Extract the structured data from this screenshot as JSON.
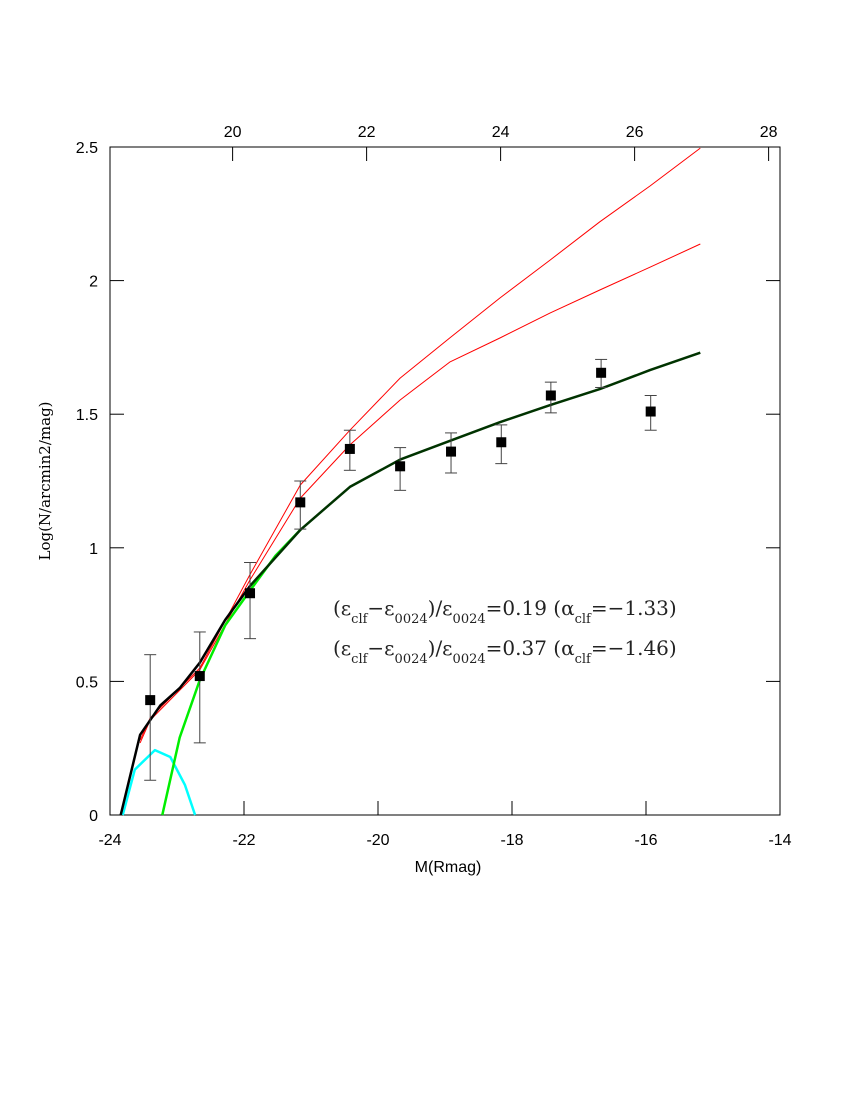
{
  "chart_data": {
    "type": "scatter",
    "xlabel": "M(Rmag)",
    "ylabel": "Log(N/arcmin2/mag)",
    "xlim": [
      -24,
      -14
    ],
    "xticks": [
      -24,
      -22,
      -20,
      -18,
      -16,
      -14
    ],
    "x2lim": [
      18.17,
      28.17
    ],
    "x2ticks": [
      20,
      22,
      24,
      26,
      28
    ],
    "ylim": [
      0,
      2.5
    ],
    "yticks": [
      0,
      0.5,
      1,
      1.5,
      2,
      2.5
    ],
    "series": [
      {
        "type": "scatter",
        "color": "#000000",
        "x": [
          -23.4,
          -22.66,
          -21.91,
          -21.16,
          -20.42,
          -19.67,
          -18.91,
          -18.16,
          -17.42,
          -16.67,
          -15.93
        ],
        "values": [
          0.43,
          0.52,
          0.83,
          1.17,
          1.37,
          1.305,
          1.36,
          1.395,
          1.57,
          1.655,
          1.51
        ],
        "err_plus": [
          0.17,
          0.165,
          0.115,
          0.08,
          0.07,
          0.07,
          0.07,
          0.065,
          0.05,
          0.05,
          0.06
        ],
        "err_minus": [
          0.3,
          0.25,
          0.17,
          0.1,
          0.08,
          0.09,
          0.08,
          0.08,
          0.065,
          0.055,
          0.07
        ]
      },
      {
        "type": "line",
        "color": "#ff0000",
        "width": 1,
        "x": [
          -23.55,
          -23.4,
          -22.66,
          -21.91,
          -21.16,
          -20.42,
          -19.67,
          -18.93,
          -18.18,
          -17.43,
          -16.69,
          -15.94,
          -15.19
        ],
        "values": [
          0.28,
          0.363,
          0.55,
          0.9,
          1.235,
          1.44,
          1.635,
          1.785,
          1.935,
          2.077,
          2.22,
          2.354,
          2.496
        ]
      },
      {
        "type": "line",
        "color": "#ff0000",
        "width": 1,
        "x": [
          -23.55,
          -23.4,
          -22.66,
          -21.91,
          -21.16,
          -20.42,
          -19.67,
          -18.93,
          -18.18,
          -17.43,
          -16.69,
          -15.94,
          -15.19
        ],
        "values": [
          0.27,
          0.355,
          0.543,
          0.88,
          1.186,
          1.385,
          1.553,
          1.695,
          1.785,
          1.879,
          1.965,
          2.05,
          2.137
        ]
      },
      {
        "type": "line",
        "color": "#00ffff",
        "width": 2.5,
        "x": [
          -23.81,
          -23.63,
          -23.33,
          -23.1,
          -22.88,
          -22.73
        ],
        "values": [
          0,
          0.17,
          0.243,
          0.217,
          0.112,
          0
        ]
      },
      {
        "type": "line",
        "color": "#00ee00",
        "width": 2.5,
        "x": [
          -23.22,
          -22.96,
          -22.66,
          -22.28,
          -21.91,
          -21.53,
          -21.16
        ],
        "values": [
          0,
          0.29,
          0.505,
          0.71,
          0.84,
          0.97,
          1.067
        ]
      },
      {
        "type": "line",
        "color": "#000000",
        "width": 2.5,
        "x": [
          -23.84,
          -23.55,
          -23.25,
          -22.96,
          -22.66,
          -22.28,
          -21.91
        ],
        "values": [
          0,
          0.3,
          0.41,
          0.475,
          0.57,
          0.73,
          0.857
        ]
      },
      {
        "type": "line",
        "color": "#003300",
        "width": 2.5,
        "x": [
          -21.91,
          -21.16,
          -20.42,
          -19.67,
          -18.93,
          -18.18,
          -17.43,
          -16.69,
          -15.94,
          -15.19
        ],
        "values": [
          0.857,
          1.067,
          1.228,
          1.33,
          1.4,
          1.47,
          1.534,
          1.594,
          1.665,
          1.73
        ]
      }
    ],
    "annotations": [
      {
        "parts": [
          "(ε",
          "clf",
          "−ε",
          "0024",
          ")/ε",
          "0024",
          "=0.19 (α",
          "clf",
          "=−1.33)"
        ]
      },
      {
        "parts": [
          "(ε",
          "clf",
          "−ε",
          "0024",
          ")/ε",
          "0024",
          "=0.37 (α",
          "clf",
          "=−1.46)"
        ]
      }
    ]
  }
}
